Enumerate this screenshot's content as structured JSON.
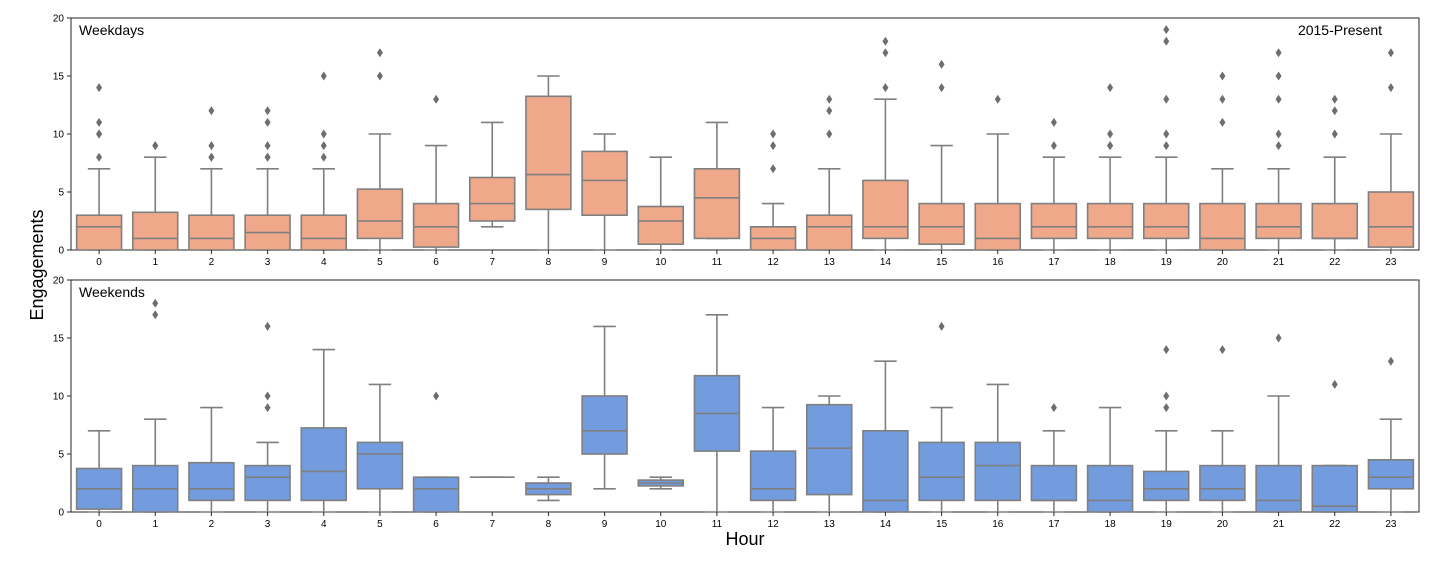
{
  "chart_data": [
    {
      "type": "box",
      "panel_label": "Weekdays",
      "annotation": "2015-Present",
      "xlabel": "",
      "ylabel": "Engagements",
      "ylim": [
        0,
        20
      ],
      "yticks": [
        0,
        5,
        10,
        15,
        20
      ],
      "categories": [
        "0",
        "1",
        "2",
        "3",
        "4",
        "5",
        "6",
        "7",
        "8",
        "9",
        "10",
        "11",
        "12",
        "13",
        "14",
        "15",
        "16",
        "17",
        "18",
        "19",
        "20",
        "21",
        "22",
        "23"
      ],
      "color": "#EFA88A",
      "boxes": [
        {
          "whislo": 0,
          "q1": 0,
          "med": 2,
          "q3": 3,
          "whishi": 7,
          "fliers": [
            8,
            10,
            10,
            11,
            14
          ]
        },
        {
          "whislo": 0,
          "q1": 0,
          "med": 1,
          "q3": 3.25,
          "whishi": 8,
          "fliers": [
            9,
            9
          ]
        },
        {
          "whislo": 0,
          "q1": 0,
          "med": 1,
          "q3": 3,
          "whishi": 7,
          "fliers": [
            8,
            8,
            9,
            12
          ]
        },
        {
          "whislo": 0,
          "q1": 0,
          "med": 1.5,
          "q3": 3,
          "whishi": 7,
          "fliers": [
            8,
            8,
            9,
            11,
            12
          ]
        },
        {
          "whislo": 0,
          "q1": 0,
          "med": 1,
          "q3": 3,
          "whishi": 7,
          "fliers": [
            8,
            9,
            10,
            15
          ]
        },
        {
          "whislo": 0,
          "q1": 1,
          "med": 2.5,
          "q3": 5.25,
          "whishi": 10,
          "fliers": [
            15,
            17
          ]
        },
        {
          "whislo": 0,
          "q1": 0.25,
          "med": 2,
          "q3": 4,
          "whishi": 9,
          "fliers": [
            13
          ]
        },
        {
          "whislo": 2,
          "q1": 2.5,
          "med": 4,
          "q3": 6.25,
          "whishi": 11,
          "fliers": []
        },
        {
          "whislo": 0,
          "q1": 3.5,
          "med": 6.5,
          "q3": 13.25,
          "whishi": 15,
          "fliers": []
        },
        {
          "whislo": 0,
          "q1": 3,
          "med": 6,
          "q3": 8.5,
          "whishi": 10,
          "fliers": []
        },
        {
          "whislo": 0,
          "q1": 0.5,
          "med": 2.5,
          "q3": 3.75,
          "whishi": 8,
          "fliers": []
        },
        {
          "whislo": 1,
          "q1": 1,
          "med": 4.5,
          "q3": 7,
          "whishi": 11,
          "fliers": []
        },
        {
          "whislo": 0,
          "q1": 0,
          "med": 1,
          "q3": 2,
          "whishi": 4,
          "fliers": [
            7,
            9,
            10
          ]
        },
        {
          "whislo": 0,
          "q1": 0,
          "med": 2,
          "q3": 3,
          "whishi": 7,
          "fliers": [
            10,
            12,
            13
          ]
        },
        {
          "whislo": 0,
          "q1": 1,
          "med": 2,
          "q3": 6,
          "whishi": 13,
          "fliers": [
            14,
            17,
            18
          ]
        },
        {
          "whislo": 0,
          "q1": 0.5,
          "med": 2,
          "q3": 4,
          "whishi": 9,
          "fliers": [
            14,
            16
          ]
        },
        {
          "whislo": 0,
          "q1": 0,
          "med": 1,
          "q3": 4,
          "whishi": 10,
          "fliers": [
            13
          ]
        },
        {
          "whislo": 0,
          "q1": 1,
          "med": 2,
          "q3": 4,
          "whishi": 8,
          "fliers": [
            9,
            11
          ]
        },
        {
          "whislo": 0,
          "q1": 1,
          "med": 2,
          "q3": 4,
          "whishi": 8,
          "fliers": [
            9,
            9,
            10,
            14
          ]
        },
        {
          "whislo": 0,
          "q1": 1,
          "med": 2,
          "q3": 4,
          "whishi": 8,
          "fliers": [
            9,
            10,
            13,
            18,
            19
          ]
        },
        {
          "whislo": 0,
          "q1": 0,
          "med": 1,
          "q3": 4,
          "whishi": 7,
          "fliers": [
            11,
            13,
            15
          ]
        },
        {
          "whislo": 0,
          "q1": 1,
          "med": 2,
          "q3": 4,
          "whishi": 7,
          "fliers": [
            9,
            10,
            13,
            15,
            17
          ]
        },
        {
          "whislo": 0,
          "q1": 1,
          "med": 1,
          "q3": 4,
          "whishi": 8,
          "fliers": [
            10,
            12,
            13
          ]
        },
        {
          "whislo": 0,
          "q1": 0.25,
          "med": 2,
          "q3": 5,
          "whishi": 10,
          "fliers": [
            14,
            17
          ]
        }
      ]
    },
    {
      "type": "box",
      "panel_label": "Weekends",
      "annotation": "",
      "xlabel": "Hour",
      "ylabel": "Engagements",
      "ylim": [
        0,
        20
      ],
      "yticks": [
        0,
        5,
        10,
        15,
        20
      ],
      "categories": [
        "0",
        "1",
        "2",
        "3",
        "4",
        "5",
        "6",
        "7",
        "8",
        "9",
        "10",
        "11",
        "12",
        "13",
        "14",
        "15",
        "16",
        "17",
        "18",
        "19",
        "20",
        "21",
        "22",
        "23"
      ],
      "color": "#739CDF",
      "boxes": [
        {
          "whislo": 0,
          "q1": 0.25,
          "med": 2,
          "q3": 3.75,
          "whishi": 7,
          "fliers": []
        },
        {
          "whislo": 0,
          "q1": 0,
          "med": 2,
          "q3": 4,
          "whishi": 8,
          "fliers": [
            17,
            18
          ]
        },
        {
          "whislo": 0,
          "q1": 1,
          "med": 2,
          "q3": 4.25,
          "whishi": 9,
          "fliers": []
        },
        {
          "whislo": 0,
          "q1": 1,
          "med": 3,
          "q3": 4,
          "whishi": 6,
          "fliers": [
            9,
            10,
            16
          ]
        },
        {
          "whislo": 0,
          "q1": 1,
          "med": 3.5,
          "q3": 7.25,
          "whishi": 14,
          "fliers": []
        },
        {
          "whislo": 0,
          "q1": 2,
          "med": 5,
          "q3": 6,
          "whishi": 11,
          "fliers": []
        },
        {
          "whislo": 0,
          "q1": 0,
          "med": 2,
          "q3": 3,
          "whishi": 3,
          "fliers": [
            10
          ]
        },
        {
          "whislo": 3,
          "q1": 3,
          "med": 3,
          "q3": 3,
          "whishi": 3,
          "fliers": []
        },
        {
          "whislo": 1,
          "q1": 1.5,
          "med": 2,
          "q3": 2.5,
          "whishi": 3,
          "fliers": []
        },
        {
          "whislo": 2,
          "q1": 5,
          "med": 7,
          "q3": 10,
          "whishi": 16,
          "fliers": []
        },
        {
          "whislo": 2,
          "q1": 2.25,
          "med": 2.5,
          "q3": 2.75,
          "whishi": 3,
          "fliers": []
        },
        {
          "whislo": 0,
          "q1": 5.25,
          "med": 8.5,
          "q3": 11.75,
          "whishi": 17,
          "fliers": []
        },
        {
          "whislo": 0,
          "q1": 1,
          "med": 2,
          "q3": 5.25,
          "whishi": 9,
          "fliers": []
        },
        {
          "whislo": 0,
          "q1": 1.5,
          "med": 5.5,
          "q3": 9.25,
          "whishi": 10,
          "fliers": []
        },
        {
          "whislo": 0,
          "q1": 0,
          "med": 1,
          "q3": 7,
          "whishi": 13,
          "fliers": []
        },
        {
          "whislo": 0,
          "q1": 1,
          "med": 3,
          "q3": 6,
          "whishi": 9,
          "fliers": [
            16
          ]
        },
        {
          "whislo": 0,
          "q1": 1,
          "med": 4,
          "q3": 6,
          "whishi": 11,
          "fliers": []
        },
        {
          "whislo": 0,
          "q1": 1,
          "med": 1,
          "q3": 4,
          "whishi": 7,
          "fliers": [
            9
          ]
        },
        {
          "whislo": 0,
          "q1": 0,
          "med": 1,
          "q3": 4,
          "whishi": 9,
          "fliers": []
        },
        {
          "whislo": 0,
          "q1": 1,
          "med": 2,
          "q3": 3.5,
          "whishi": 7,
          "fliers": [
            9,
            10,
            14
          ]
        },
        {
          "whislo": 0,
          "q1": 1,
          "med": 2,
          "q3": 4,
          "whishi": 7,
          "fliers": [
            14
          ]
        },
        {
          "whislo": 0,
          "q1": 0,
          "med": 1,
          "q3": 4,
          "whishi": 10,
          "fliers": [
            15
          ]
        },
        {
          "whislo": 0,
          "q1": 0,
          "med": 0.5,
          "q3": 4,
          "whishi": 4,
          "fliers": [
            11
          ]
        },
        {
          "whislo": 0,
          "q1": 2,
          "med": 3,
          "q3": 4.5,
          "whishi": 8,
          "fliers": [
            13
          ]
        }
      ]
    }
  ],
  "figure": {
    "ylabel": "Engagements",
    "xlabel": "Hour",
    "line_color": "#7F7F7F",
    "flier_color": "#6E6E6E",
    "axis_color": "#262626"
  }
}
